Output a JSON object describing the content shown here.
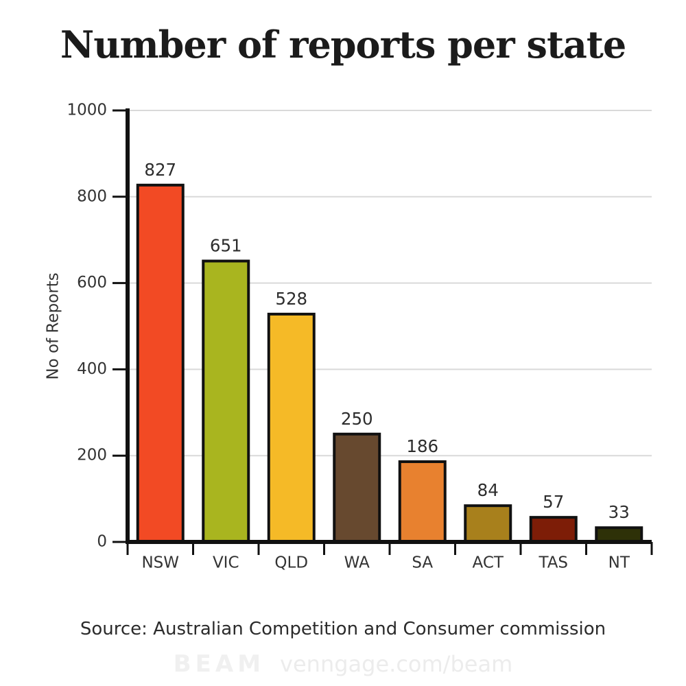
{
  "title": "Number of reports per state",
  "source": "Source: Australian Competition and Consumer commission",
  "watermark": {
    "brand": "BEAM",
    "url": "venngage.com/beam"
  },
  "chart_data": {
    "type": "bar",
    "title": "Number of reports per state",
    "categories": [
      "NSW",
      "VIC",
      "QLD",
      "WA",
      "SA",
      "ACT",
      "TAS",
      "NT"
    ],
    "values": [
      827,
      651,
      528,
      250,
      186,
      84,
      57,
      33
    ],
    "bar_colors": [
      "#F24A24",
      "#A9B51F",
      "#F5BA27",
      "#67492F",
      "#E8812F",
      "#A8801C",
      "#7D1D07",
      "#2E3108"
    ],
    "bar_border_color": "#111111",
    "xlabel": "",
    "ylabel": "No of Reports",
    "ylim": [
      0,
      1000
    ],
    "yticks": [
      0,
      200,
      400,
      600,
      800,
      1000
    ],
    "grid": true,
    "legend": false,
    "gridline_color": "#d9d9d9",
    "axis_color": "#111111",
    "tick_label_color": "#333333",
    "value_label_color": "#2d2d2d"
  }
}
